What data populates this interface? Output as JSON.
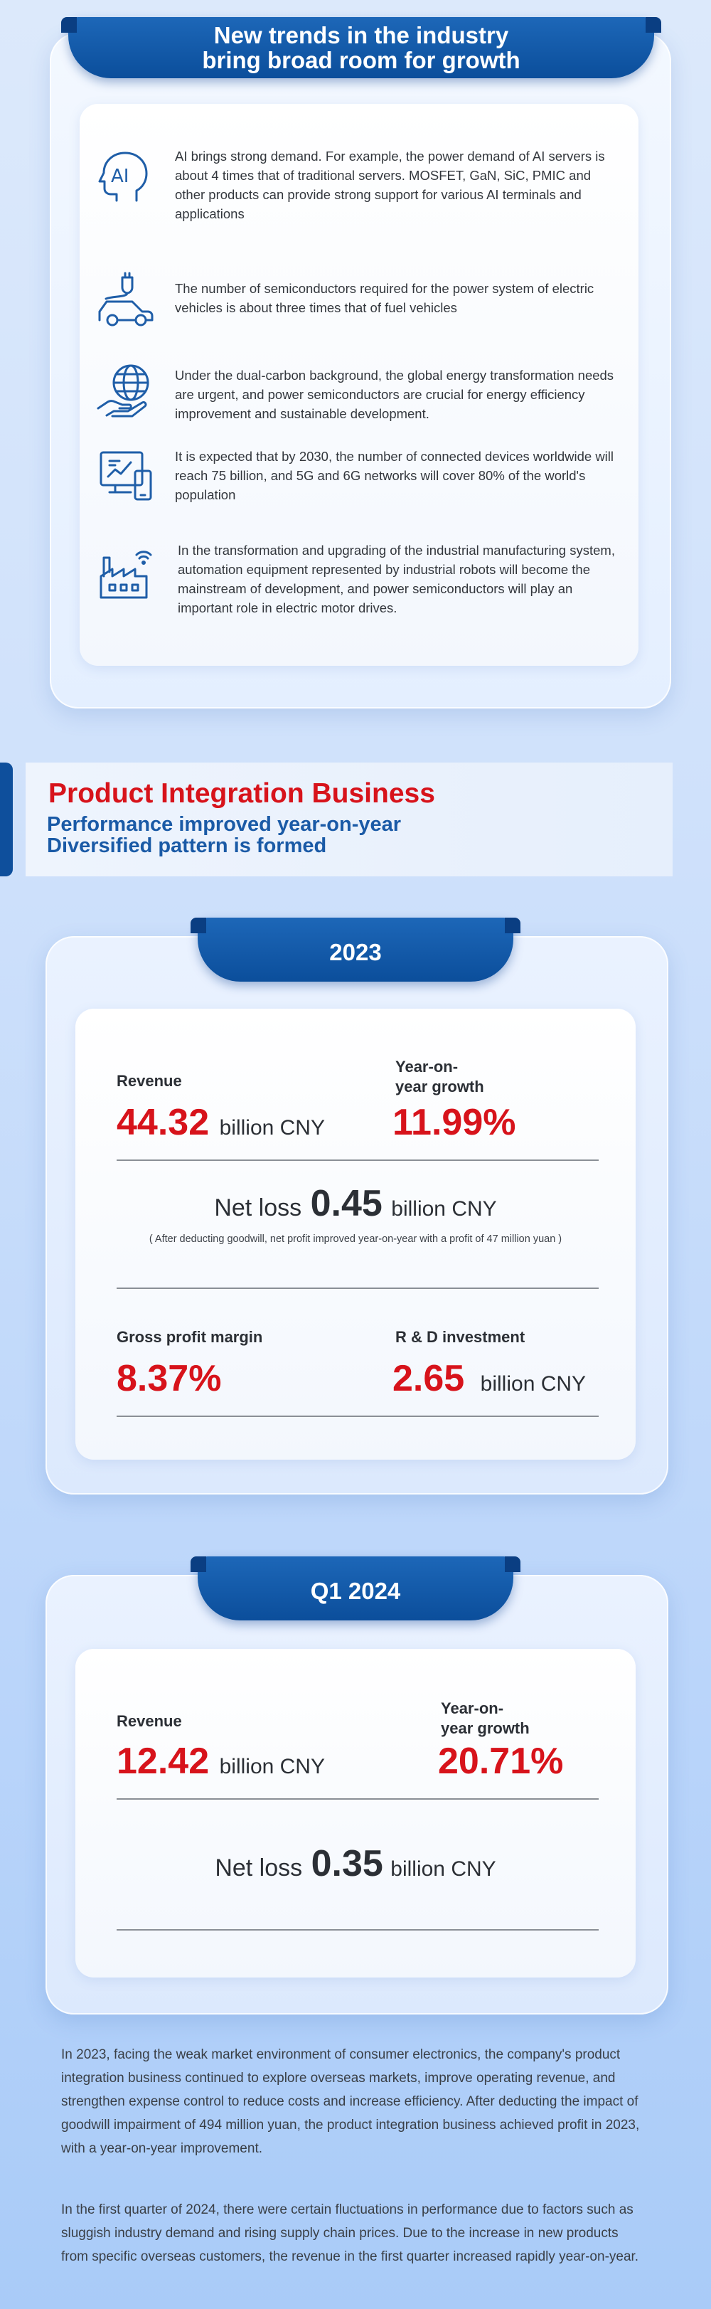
{
  "trends": {
    "title": "New trends in the industry\nbring broad room for growth",
    "items": [
      {
        "icon": "ai-head-icon",
        "text": "AI brings strong demand. For example, the power demand of AI servers is about 4 times that of traditional servers. MOSFET, GaN, SiC, PMIC and other products can provide strong support for various AI terminals and applications",
        "icon_label": "AI"
      },
      {
        "icon": "electric-car-icon",
        "text": "The number of semiconductors required for the power system of electric vehicles is about three times that of fuel vehicles"
      },
      {
        "icon": "globe-hand-icon",
        "text": "Under the dual-carbon background, the global energy transformation needs are urgent, and power semiconductors are crucial for energy efficiency improvement and sustainable development."
      },
      {
        "icon": "connected-devices-icon",
        "text": "It is expected that by 2030, the number of connected devices worldwide will reach 75 billion, and 5G and 6G networks will cover 80% of the world's population"
      },
      {
        "icon": "smart-factory-icon",
        "text": "In the transformation and upgrading of the industrial manufacturing system, automation equipment represented by industrial robots will become the mainstream of development, and power semiconductors will play an important role in electric motor drives."
      }
    ]
  },
  "pib": {
    "title": "Product Integration Business",
    "subtitle": "Performance improved year-on-year\nDiversified pattern is formed"
  },
  "y2023": {
    "tab": "2023",
    "revenue_label": "Revenue",
    "revenue_value": "44.32",
    "revenue_unit": "billion CNY",
    "yoy_label": "Year-on-\nyear growth",
    "yoy_value": "11.99%",
    "net_label": "Net loss",
    "net_value": "0.45",
    "net_unit": "billion CNY",
    "note": "( After deducting goodwill, net profit improved year-on-year with a profit of 47 million yuan )",
    "gpm_label": "Gross profit margin",
    "gpm_value": "8.37%",
    "rd_label": "R & D investment",
    "rd_value": "2.65",
    "rd_unit": "billion CNY"
  },
  "q12024": {
    "tab": "Q1 2024",
    "revenue_label": "Revenue",
    "revenue_value": "12.42",
    "revenue_unit": "billion CNY",
    "yoy_label": "Year-on-\nyear growth",
    "yoy_value": "20.71%",
    "net_label": "Net loss",
    "net_value": "0.35",
    "net_unit": "billion CNY"
  },
  "summary": {
    "p1": "In 2023, facing the weak market environment of consumer electronics, the company's product integration business continued to explore overseas markets, improve operating revenue, and strengthen expense control to reduce costs and increase efficiency. After deducting the impact of goodwill impairment of 494 million yuan, the product integration business achieved profit in 2023, with a year-on-year improvement.",
    "p2": "In the first quarter of 2024, there were certain fluctuations in performance due to factors such as sluggish industry demand and rising supply chain prices. Due to the increase in new products from specific overseas customers, the revenue in the first quarter increased rapidly year-on-year."
  },
  "colors": {
    "accent_blue": "#0b4e9b",
    "accent_red": "#d7131b"
  }
}
